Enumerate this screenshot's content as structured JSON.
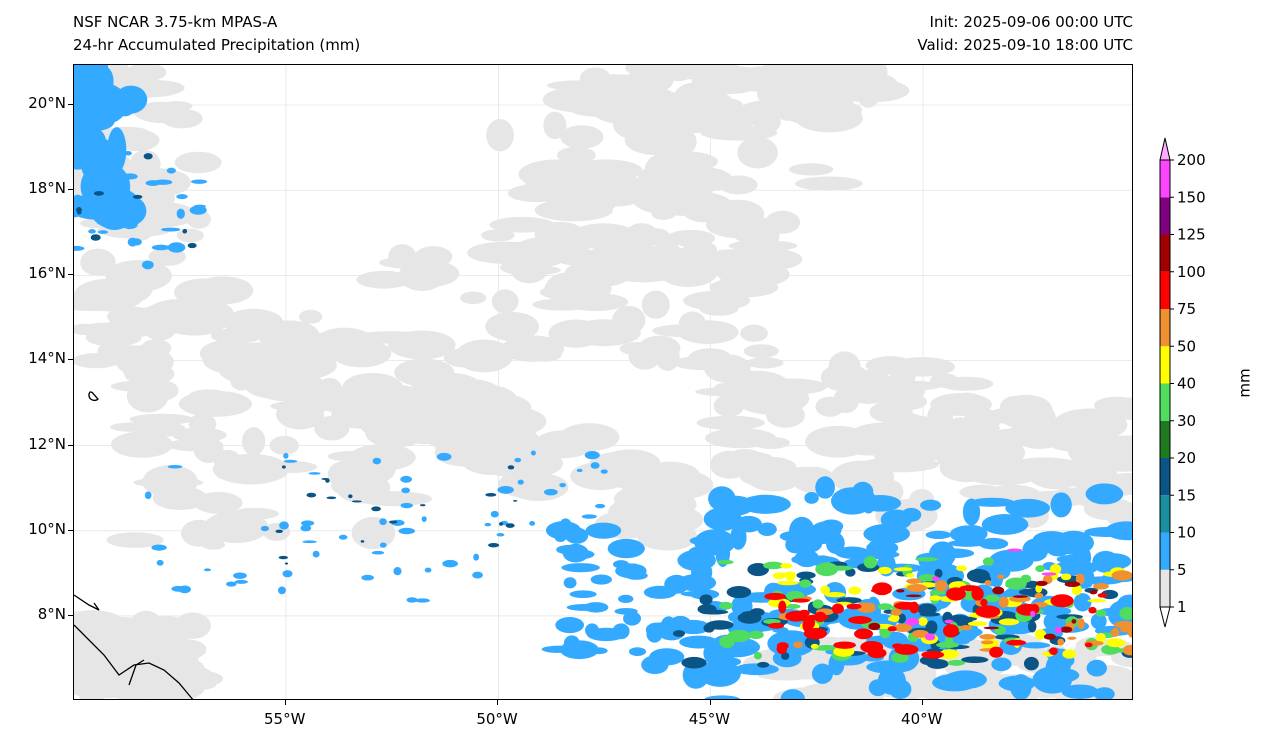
{
  "header": {
    "model": "NSF NCAR 3.75-km MPAS-A",
    "field": "24-hr Accumulated Precipitation (mm)",
    "init": "Init: 2025-09-06 00:00 UTC",
    "valid": "Valid: 2025-09-10 18:00 UTC"
  },
  "axes": {
    "lat_labels": [
      "20°N",
      "18°N",
      "16°N",
      "14°N",
      "12°N",
      "10°N",
      "8°N"
    ],
    "lat_values": [
      20,
      18,
      16,
      14,
      12,
      10,
      8
    ],
    "lon_labels": [
      "55°W",
      "50°W",
      "45°W",
      "40°W"
    ],
    "lon_values": [
      -55,
      -50,
      -45,
      -40
    ]
  },
  "colorbar": {
    "unit": "mm",
    "levels": [
      "1",
      "5",
      "10",
      "15",
      "20",
      "30",
      "40",
      "50",
      "75",
      "100",
      "125",
      "150",
      "200"
    ],
    "colors": [
      "#e6e6e6",
      "#33a9ff",
      "#1a8fa0",
      "#0b5486",
      "#1f7a1f",
      "#4fdc5f",
      "#ffff00",
      "#f09030",
      "#ff0000",
      "#a00000",
      "#800080",
      "#ff44ff"
    ],
    "over_color": "#ffaaff",
    "under_color": "#ffffff"
  }
}
